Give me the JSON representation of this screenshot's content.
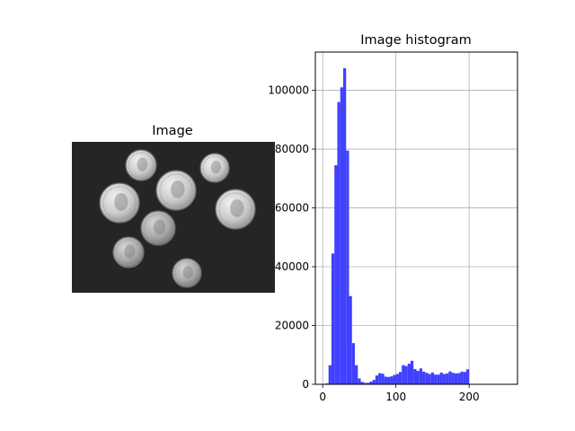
{
  "chart_data": [
    {
      "type": "image",
      "title": "Image",
      "coins": [
        {
          "kind": "quarter",
          "x": 157,
          "y": 184,
          "r": 17
        },
        {
          "kind": "quarter",
          "x": 239,
          "y": 187,
          "r": 16
        },
        {
          "kind": "quarter",
          "x": 133,
          "y": 226,
          "r": 22
        },
        {
          "kind": "quarter",
          "x": 196,
          "y": 212,
          "r": 22
        },
        {
          "kind": "quarter",
          "x": 262,
          "y": 233,
          "r": 22
        },
        {
          "kind": "dime",
          "x": 176,
          "y": 254,
          "r": 19
        },
        {
          "kind": "dime",
          "x": 143,
          "y": 281,
          "r": 17
        },
        {
          "kind": "dime",
          "x": 208,
          "y": 304,
          "r": 16
        }
      ]
    },
    {
      "type": "bar",
      "title": "Image histogram",
      "xlabel": "",
      "ylabel": "",
      "grid": true,
      "bar_color": "#4040ff",
      "xlim": [
        -10,
        266
      ],
      "ylim": [
        0,
        113000
      ],
      "xticks": [
        0,
        100,
        200
      ],
      "yticks": [
        0,
        20000,
        40000,
        60000,
        80000,
        100000
      ],
      "bin_width": 4,
      "bins_start": [
        0,
        4,
        8,
        12,
        16,
        20,
        24,
        28,
        32,
        36,
        40,
        44,
        48,
        52,
        56,
        60,
        64,
        68,
        72,
        76,
        80,
        84,
        88,
        92,
        96,
        100,
        104,
        108,
        112,
        116,
        120,
        124,
        128,
        132,
        136,
        140,
        144,
        148,
        152,
        156,
        160,
        164,
        168,
        172,
        176,
        180,
        184,
        188,
        192,
        196,
        200,
        204,
        208,
        212,
        216,
        220,
        224,
        228,
        232,
        236,
        240,
        244,
        248,
        252
      ],
      "values": [
        0,
        300,
        6500,
        44500,
        74500,
        96000,
        101000,
        107500,
        79500,
        30000,
        14000,
        6500,
        2000,
        800,
        500,
        500,
        900,
        1500,
        3000,
        3800,
        3600,
        2600,
        2500,
        2700,
        3200,
        3500,
        4200,
        6500,
        6200,
        7000,
        8000,
        5200,
        4600,
        5400,
        4300,
        3900,
        3500,
        4000,
        3300,
        3300,
        4000,
        3500,
        3700,
        4400,
        3900,
        3700,
        3800,
        4300,
        4200,
        5100,
        0,
        0,
        0,
        0,
        0,
        0,
        0,
        0,
        0,
        0,
        0,
        0,
        0,
        0
      ]
    }
  ]
}
